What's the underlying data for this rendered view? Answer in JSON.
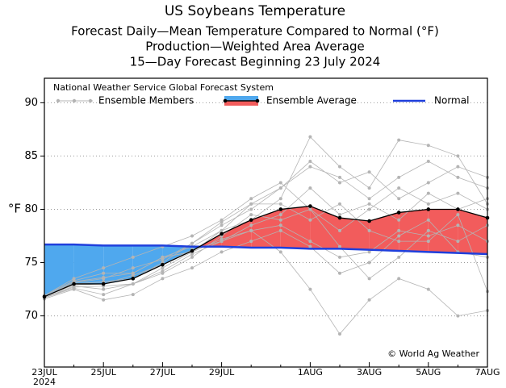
{
  "chart_data": {
    "type": "line",
    "title": "US Soybeans Temperature",
    "subtitles": [
      "Forecast Daily—Mean Temperature Compared to Normal (°F)",
      "Production—Weighted Area Average",
      "15—Day Forecast Beginning 23 July 2024"
    ],
    "y_label": "°F",
    "source": "National Weather Service Global Forecast System",
    "credit": "© World Ag Weather",
    "year_label": "2024",
    "categories": [
      "23JUL",
      null,
      "25JUL",
      null,
      "27JUL",
      null,
      "29JUL",
      null,
      null,
      "1AUG",
      null,
      "3AUG",
      null,
      "5AUG",
      null,
      "7AUG"
    ],
    "ylim": [
      65.2,
      92.3
    ],
    "yticks": [
      70,
      75,
      80,
      85,
      90
    ],
    "grid": true,
    "above_color": "#f25c5c",
    "below_color": "#4fa8ee",
    "series": [
      {
        "name": "Ensemble Members",
        "color": "#b4b4b4",
        "members": [
          [
            71.8,
            73.2,
            73.6,
            74.0,
            75.5,
            76.5,
            78.0,
            80.5,
            82.0,
            84.0,
            83.0,
            81.0,
            83.0,
            84.5,
            83.0,
            82.0
          ],
          [
            71.7,
            72.8,
            72.5,
            73.0,
            74.2,
            75.8,
            77.0,
            78.0,
            78.5,
            77.0,
            75.5,
            76.0,
            78.0,
            77.5,
            78.5,
            77.0
          ],
          [
            71.9,
            73.5,
            74.5,
            75.5,
            76.5,
            77.5,
            79.0,
            81.0,
            82.5,
            80.0,
            78.0,
            80.0,
            82.0,
            80.5,
            81.5,
            80.0
          ],
          [
            71.6,
            72.5,
            71.5,
            72.0,
            73.5,
            74.5,
            76.0,
            77.0,
            78.0,
            76.5,
            74.0,
            75.0,
            77.5,
            79.0,
            76.0,
            75.5
          ],
          [
            71.8,
            73.0,
            73.2,
            73.5,
            75.0,
            76.8,
            78.5,
            80.0,
            82.0,
            84.5,
            82.5,
            83.5,
            81.0,
            82.5,
            84.0,
            83.0
          ],
          [
            71.7,
            72.6,
            72.0,
            73.0,
            74.0,
            75.5,
            77.5,
            79.5,
            79.0,
            80.0,
            76.5,
            73.5,
            75.5,
            78.0,
            77.0,
            78.5
          ],
          [
            71.9,
            73.3,
            74.0,
            74.0,
            75.5,
            76.0,
            78.0,
            79.0,
            81.0,
            86.8,
            84.0,
            82.0,
            86.5,
            86.0,
            85.0,
            80.5
          ],
          [
            71.8,
            72.9,
            73.0,
            73.8,
            74.8,
            76.2,
            77.0,
            78.5,
            79.5,
            82.0,
            79.5,
            80.5,
            79.0,
            81.5,
            80.0,
            81.0
          ],
          [
            71.7,
            72.7,
            72.8,
            73.0,
            74.5,
            76.0,
            77.2,
            78.0,
            76.0,
            72.5,
            68.3,
            71.5,
            73.5,
            72.5,
            70.0,
            70.5
          ],
          [
            71.8,
            73.1,
            73.5,
            74.5,
            75.3,
            76.8,
            78.8,
            80.5,
            80.5,
            79.0,
            80.5,
            78.0,
            77.0,
            77.0,
            79.5,
            72.3
          ]
        ]
      },
      {
        "name": "Ensemble Average",
        "color": "#000000",
        "values": [
          71.8,
          73.0,
          73.0,
          73.5,
          74.8,
          76.1,
          77.7,
          79.0,
          80.0,
          80.3,
          79.2,
          78.9,
          79.7,
          80.0,
          80.0,
          79.2
        ]
      },
      {
        "name": "Normal",
        "color": "#1f3fdc",
        "values": [
          76.7,
          76.7,
          76.6,
          76.6,
          76.6,
          76.5,
          76.5,
          76.4,
          76.4,
          76.3,
          76.3,
          76.2,
          76.1,
          76.0,
          75.9,
          75.8
        ]
      }
    ]
  }
}
